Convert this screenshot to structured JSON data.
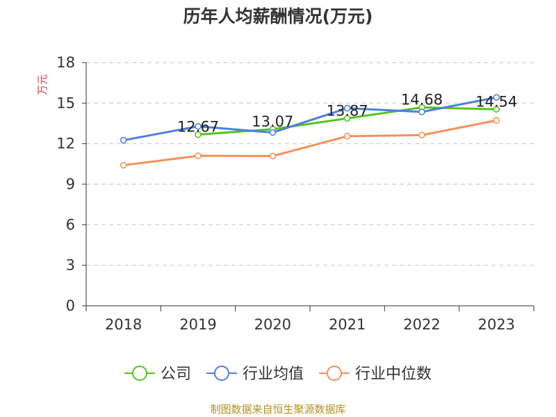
{
  "chart_data": {
    "type": "line",
    "title": "历年人均薪酬情况(万元)",
    "ylabel": "万元",
    "xlabel": "",
    "categories": [
      "2018",
      "2019",
      "2020",
      "2021",
      "2022",
      "2023"
    ],
    "ylim": [
      0,
      18
    ],
    "yticks": [
      0,
      3,
      6,
      9,
      12,
      15,
      18
    ],
    "grid": true,
    "legend_position": "bottom",
    "series": [
      {
        "name": "公司",
        "color": "#52c41a",
        "values": [
          null,
          12.67,
          13.07,
          13.87,
          14.68,
          14.54
        ],
        "labels": [
          null,
          "12.67",
          "13.07",
          "13.87",
          "14.68",
          "14.54"
        ]
      },
      {
        "name": "行业均值",
        "color": "#4e7fdc",
        "values": [
          12.25,
          13.28,
          12.82,
          14.62,
          14.35,
          15.42
        ]
      },
      {
        "name": "行业中位数",
        "color": "#f5905a",
        "values": [
          10.4,
          11.1,
          11.08,
          12.55,
          12.63,
          13.72
        ]
      }
    ]
  },
  "source": "制图数据来自恒生聚源数据库"
}
